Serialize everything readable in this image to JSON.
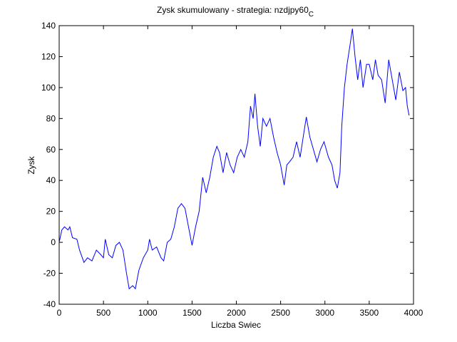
{
  "chart_data": {
    "type": "line",
    "title": "Zysk skumulowany - strategia: nzdjpy60",
    "title_subscript": "C",
    "x_label": "Liczba Swiec",
    "y_label": "Zysk",
    "x": [
      0,
      30,
      60,
      100,
      120,
      150,
      200,
      230,
      280,
      320,
      370,
      420,
      470,
      500,
      520,
      560,
      600,
      640,
      680,
      720,
      760,
      790,
      830,
      860,
      900,
      950,
      1000,
      1020,
      1050,
      1100,
      1150,
      1180,
      1220,
      1260,
      1300,
      1340,
      1380,
      1420,
      1460,
      1500,
      1540,
      1580,
      1620,
      1660,
      1700,
      1740,
      1780,
      1810,
      1850,
      1890,
      1930,
      1970,
      2010,
      2050,
      2090,
      2130,
      2160,
      2190,
      2210,
      2240,
      2270,
      2300,
      2340,
      2380,
      2420,
      2460,
      2500,
      2540,
      2570,
      2600,
      2640,
      2680,
      2720,
      2760,
      2790,
      2830,
      2870,
      2910,
      2950,
      2990,
      3040,
      3080,
      3110,
      3140,
      3170,
      3190,
      3220,
      3250,
      3290,
      3310,
      3340,
      3370,
      3400,
      3430,
      3470,
      3500,
      3540,
      3570,
      3600,
      3640,
      3680,
      3720,
      3760,
      3800,
      3840,
      3880,
      3910,
      3930,
      3950
    ],
    "series": [
      {
        "name": "nzdjpy60",
        "color": "#0000ff",
        "values": [
          0,
          8,
          10,
          8,
          10,
          3,
          2,
          -5,
          -13,
          -10,
          -12,
          -5,
          -8,
          -10,
          2,
          -8,
          -10,
          -2,
          0,
          -5,
          -20,
          -30,
          -28,
          -30,
          -18,
          -10,
          -5,
          2,
          -5,
          -3,
          -10,
          -12,
          0,
          2,
          10,
          22,
          25,
          22,
          10,
          -2,
          10,
          20,
          42,
          32,
          42,
          55,
          62,
          58,
          45,
          58,
          50,
          45,
          55,
          60,
          55,
          65,
          88,
          80,
          96,
          75,
          62,
          80,
          75,
          80,
          68,
          58,
          50,
          37,
          50,
          52,
          55,
          65,
          55,
          70,
          81,
          68,
          60,
          52,
          60,
          65,
          55,
          50,
          40,
          35,
          45,
          75,
          100,
          115,
          130,
          138,
          120,
          105,
          118,
          100,
          115,
          115,
          105,
          118,
          108,
          105,
          90,
          118,
          105,
          92,
          110,
          98,
          100,
          88,
          82
        ]
      }
    ],
    "xlim": [
      0,
      4000
    ],
    "xticks": [
      0,
      500,
      1000,
      1500,
      2000,
      2500,
      3000,
      3500,
      4000
    ],
    "ylim": [
      -40,
      140
    ],
    "yticks": [
      -40,
      -20,
      0,
      20,
      40,
      60,
      80,
      100,
      120,
      140
    ]
  }
}
